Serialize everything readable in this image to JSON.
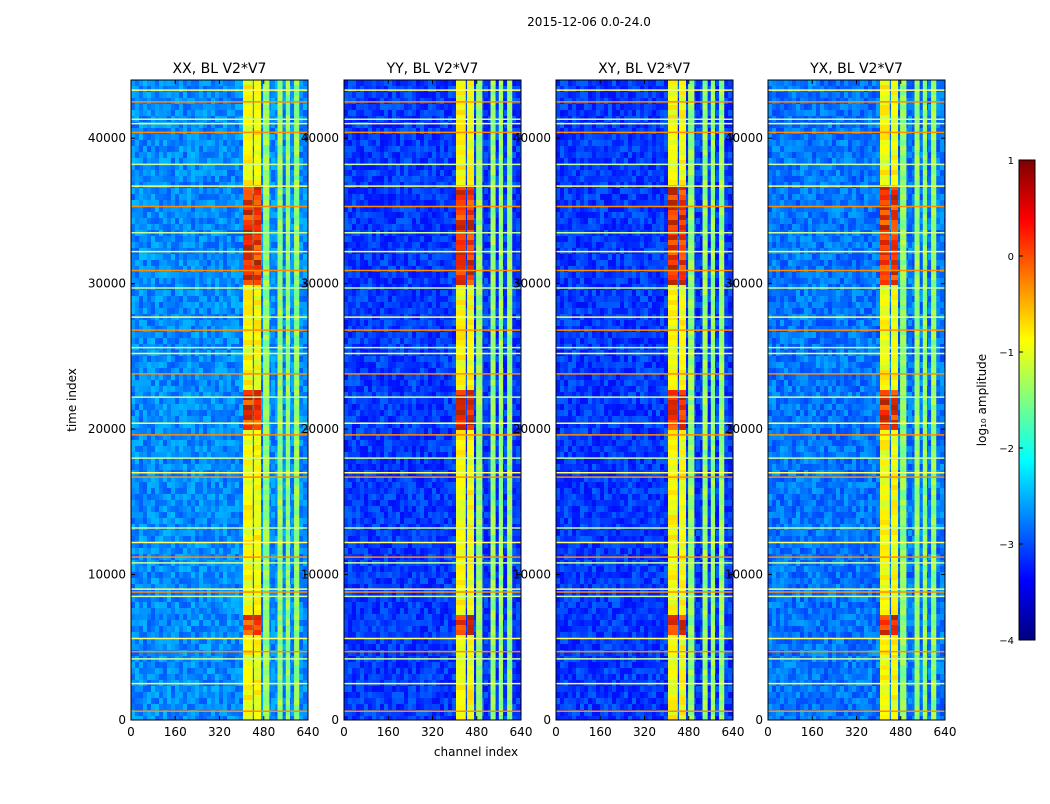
{
  "figure": {
    "suptitle": "2015-12-06 0.0-24.0"
  },
  "chart_data": {
    "type": "heatmap",
    "xlabel": "channel index",
    "ylabel": "time index",
    "xlim": [
      0,
      640
    ],
    "ylim": [
      0,
      44000
    ],
    "xticks": [
      0,
      160,
      320,
      480,
      640
    ],
    "xtick_labels": [
      "0",
      "160",
      "320",
      "480",
      "640"
    ],
    "yticks": [
      0,
      10000,
      20000,
      30000,
      40000
    ],
    "ytick_labels": [
      "0",
      "10000",
      "20000",
      "30000",
      "40000"
    ],
    "panels": [
      {
        "title": "XX, BL V2*V7",
        "id": "xx"
      },
      {
        "title": "YY, BL V2*V7",
        "id": "yy"
      },
      {
        "title": "XY, BL V2*V7",
        "id": "xy"
      },
      {
        "title": "YX, BL V2*V7",
        "id": "yx"
      }
    ],
    "colorbar": {
      "label": "log₁₀ amplitude",
      "range": [
        -4,
        1
      ],
      "ticks": [
        1,
        0,
        -1,
        -2,
        -3,
        -4
      ],
      "tick_labels": [
        "1",
        "0",
        "−1",
        "−2",
        "−3",
        "−4"
      ],
      "colormap": "jet"
    },
    "features": {
      "bright_channel_bands": [
        [
          405,
          440
        ],
        [
          445,
          470
        ],
        [
          478,
          500
        ],
        [
          530,
          548
        ],
        [
          560,
          575
        ],
        [
          590,
          608
        ]
      ],
      "rfi_time_rows": [
        600,
        2500,
        4200,
        4700,
        5600,
        8500,
        8800,
        9000,
        10800,
        11200,
        12200,
        13200,
        16700,
        17000,
        18000,
        19600,
        20400,
        22200,
        23800,
        25200,
        25600,
        26800,
        27700,
        29700,
        30900,
        32200,
        33500,
        35300,
        36700,
        38200,
        40400,
        41000,
        41300,
        42500,
        43300
      ],
      "strong_emission_times": [
        [
          6000,
          7500
        ],
        [
          20000,
          23000
        ],
        [
          30000,
          37000
        ]
      ]
    }
  }
}
